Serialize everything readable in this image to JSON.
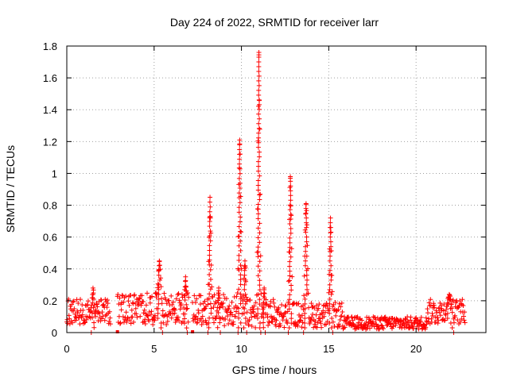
{
  "chart_data": {
    "type": "scatter",
    "title": "Day 224 of 2022, SRMTID for receiver larr",
    "xlabel": "GPS time / hours",
    "ylabel": "SRMTID / TECUs",
    "xlim": [
      0,
      24
    ],
    "ylim": [
      0,
      1.8
    ],
    "xticks": [
      "0",
      "5",
      "10",
      "15",
      "20"
    ],
    "yticks": [
      "0",
      "0.2",
      "0.4",
      "0.6",
      "0.8",
      "1",
      "1.2",
      "1.4",
      "1.6",
      "1.8"
    ],
    "grid": true,
    "marker": "plus",
    "color": "#ff0000",
    "baseline_segments": [
      {
        "from": 0.0,
        "to": 2.5,
        "level": 0.13,
        "spread": 0.08
      },
      {
        "from": 2.9,
        "to": 7.0,
        "level": 0.15,
        "spread": 0.1
      },
      {
        "from": 7.2,
        "to": 9.8,
        "level": 0.14,
        "spread": 0.1
      },
      {
        "from": 9.8,
        "to": 12.0,
        "level": 0.12,
        "spread": 0.09
      },
      {
        "from": 12.0,
        "to": 15.8,
        "level": 0.11,
        "spread": 0.08
      },
      {
        "from": 15.8,
        "to": 20.6,
        "level": 0.06,
        "spread": 0.04
      },
      {
        "from": 20.6,
        "to": 22.8,
        "level": 0.13,
        "spread": 0.08
      }
    ],
    "spikes": [
      {
        "x": 1.5,
        "y": 0.28,
        "width": 0.12
      },
      {
        "x": 5.3,
        "y": 0.45,
        "width": 0.15
      },
      {
        "x": 6.8,
        "y": 0.35,
        "width": 0.12
      },
      {
        "x": 8.2,
        "y": 0.85,
        "width": 0.1
      },
      {
        "x": 8.7,
        "y": 0.28,
        "width": 0.1
      },
      {
        "x": 9.9,
        "y": 1.21,
        "width": 0.1
      },
      {
        "x": 10.2,
        "y": 0.45,
        "width": 0.1
      },
      {
        "x": 11.0,
        "y": 1.76,
        "width": 0.09
      },
      {
        "x": 11.3,
        "y": 0.28,
        "width": 0.08
      },
      {
        "x": 12.8,
        "y": 0.98,
        "width": 0.1
      },
      {
        "x": 13.7,
        "y": 0.81,
        "width": 0.12
      },
      {
        "x": 15.1,
        "y": 0.72,
        "width": 0.1
      },
      {
        "x": 21.9,
        "y": 0.24,
        "width": 0.25
      }
    ],
    "isolated_points": [
      {
        "x": 2.9,
        "y": 0.0
      },
      {
        "x": 7.2,
        "y": 0.0
      }
    ]
  }
}
